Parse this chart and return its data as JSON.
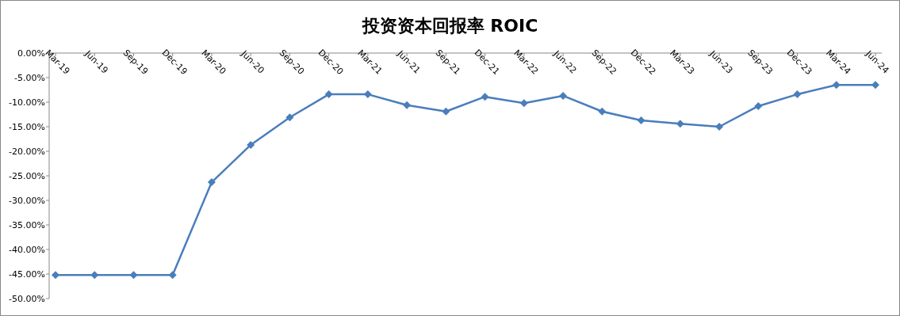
{
  "chart_data": {
    "type": "line",
    "title": "投资资本回报率 ROIC",
    "categories": [
      "Mar-19",
      "Jun-19",
      "Sep-19",
      "Dec-19",
      "Mar-20",
      "Jun-20",
      "Sep-20",
      "Dec-20",
      "Mar-21",
      "Jun-21",
      "Sep-21",
      "Dec-21",
      "Mar-22",
      "Jun-22",
      "Sep-22",
      "Dec-22",
      "Mar-23",
      "Jun-23",
      "Sep-23",
      "Dec-23",
      "Mar-24",
      "Jun-24"
    ],
    "series": [
      {
        "color": "#4a7ebb",
        "values": [
          -45.2,
          -45.2,
          -45.2,
          -45.2,
          -26.3,
          -18.7,
          -13.1,
          -8.4,
          -8.4,
          -10.6,
          -11.9,
          -8.9,
          -10.2,
          -8.7,
          -11.9,
          -13.7,
          -14.4,
          -15.0,
          -10.8,
          -8.4,
          -6.5,
          -6.5
        ]
      }
    ],
    "ylim": [
      -50,
      0
    ],
    "yticks": [
      {
        "value": 0,
        "label": "0.00%"
      },
      {
        "value": -5,
        "label": "-5.00%"
      },
      {
        "value": -10,
        "label": "-10.00%"
      },
      {
        "value": -15,
        "label": "-15.00%"
      },
      {
        "value": -20,
        "label": "-20.00%"
      },
      {
        "value": -25,
        "label": "-25.00%"
      },
      {
        "value": -30,
        "label": "-30.00%"
      },
      {
        "value": -35,
        "label": "-35.00%"
      },
      {
        "value": -40,
        "label": "-40.00%"
      },
      {
        "value": -45,
        "label": "-45.00%"
      },
      {
        "value": -50,
        "label": "-50.00%"
      }
    ],
    "marker": "diamond",
    "line_style": "solid",
    "grid": false
  }
}
